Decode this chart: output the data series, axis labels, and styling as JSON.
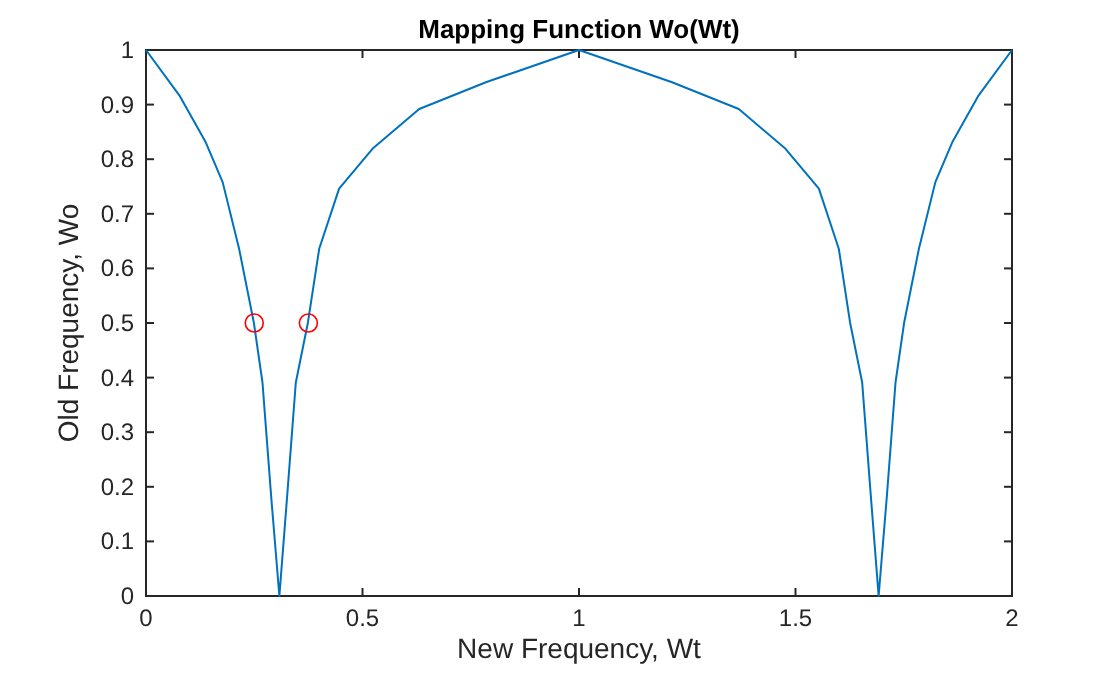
{
  "chart_data": {
    "type": "line",
    "title": "Mapping Function Wo(Wt)",
    "xlabel": "New Frequency, Wt",
    "ylabel": "Old Frequency, Wo",
    "xlim": [
      0,
      2
    ],
    "ylim": [
      0,
      1
    ],
    "xticks": [
      0,
      0.5,
      1,
      1.5,
      2
    ],
    "yticks": [
      0,
      0.1,
      0.2,
      0.3,
      0.4,
      0.5,
      0.6,
      0.7,
      0.8,
      0.9,
      1
    ],
    "grid": false,
    "series": [
      {
        "color": "#0072bd",
        "marker": "none",
        "x": [
          0,
          0.077,
          0.138,
          0.177,
          0.215,
          0.249,
          0.269,
          0.289,
          0.308,
          0.326,
          0.346,
          0.374,
          0.4,
          0.446,
          0.523,
          0.631,
          0.785,
          1,
          1.215,
          1.369,
          1.477,
          1.554,
          1.6,
          1.626,
          1.654,
          1.674,
          1.692,
          1.711,
          1.731,
          1.751,
          1.785,
          1.823,
          1.862,
          1.923,
          2
        ],
        "values": [
          1,
          0.917,
          0.831,
          0.758,
          0.636,
          0.501,
          0.391,
          0.183,
          0,
          0.183,
          0.391,
          0.501,
          0.636,
          0.746,
          0.819,
          0.892,
          0.941,
          1,
          0.941,
          0.892,
          0.819,
          0.746,
          0.636,
          0.501,
          0.391,
          0.183,
          0,
          0.183,
          0.391,
          0.501,
          0.636,
          0.758,
          0.831,
          0.917,
          1
        ]
      },
      {
        "type": "scatter",
        "color": "#ff0000",
        "marker": "circle",
        "x": [
          0.25,
          0.375
        ],
        "values": [
          0.5,
          0.5
        ]
      }
    ]
  }
}
